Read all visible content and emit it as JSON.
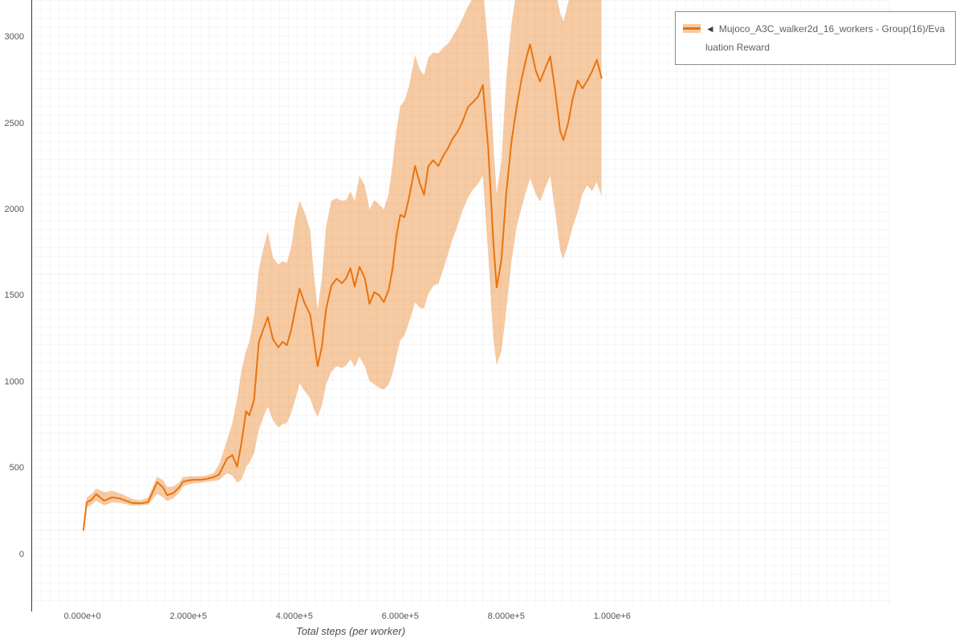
{
  "legend": {
    "collapse_icon": "◄",
    "label": "Mujoco_A3C_walker2d_16_workers - Group(16)/Evaluation Reward"
  },
  "chart_data": {
    "type": "line",
    "title": "",
    "xlabel": "Total steps (per worker)",
    "ylabel": "",
    "grid": true,
    "legend_position": "top-right-outside",
    "xlim": [
      -95000,
      1526000
    ],
    "ylim": [
      -300,
      3215
    ],
    "x_ticks": {
      "values": [
        0,
        200000,
        400000,
        600000,
        800000,
        1000000
      ],
      "labels": [
        "0.000e+0",
        "2.000e+5",
        "4.000e+5",
        "6.000e+5",
        "8.000e+5",
        "1.000e+6"
      ]
    },
    "y_ticks": {
      "values": [
        0,
        500,
        1000,
        1500,
        2000,
        2500,
        3000
      ],
      "labels": [
        "0",
        "500",
        "1000",
        "1500",
        "2000",
        "2500",
        "3000"
      ]
    },
    "series": [
      {
        "name": "Mujoco_A3C_walker2d_16_workers - Group(16)/Evaluation Reward",
        "line_color": "#e8740e",
        "band_fill": "rgba(232,116,14,0.38)",
        "x": [
          2000,
          8000,
          18000,
          26000,
          41000,
          56000,
          72000,
          94000,
          110000,
          124000,
          141000,
          152000,
          160000,
          172000,
          182000,
          190000,
          200000,
          212000,
          224000,
          236000,
          248000,
          258000,
          273000,
          283000,
          292000,
          300000,
          309000,
          315000,
          324000,
          333000,
          342000,
          350000,
          360000,
          370000,
          378000,
          386000,
          394000,
          402000,
          410000,
          420000,
          430000,
          437000,
          444000,
          452000,
          460000,
          470000,
          480000,
          490000,
          498000,
          506000,
          514000,
          523000,
          533000,
          542000,
          551000,
          560000,
          569000,
          578000,
          585000,
          593000,
          600000,
          608000,
          617000,
          628000,
          637000,
          645000,
          653000,
          662000,
          672000,
          681000,
          690000,
          698000,
          708000,
          717000,
          728000,
          738000,
          747000,
          756000,
          766000,
          776000,
          782000,
          791000,
          800000,
          810000,
          820000,
          829000,
          838000,
          845000,
          856000,
          864000,
          874000,
          883000,
          892000,
          902000,
          908000,
          917000,
          926000,
          935000,
          944000,
          953000,
          962000,
          971000,
          980000
        ],
        "mean": [
          140,
          300,
          318,
          348,
          310,
          330,
          322,
          297,
          295,
          302,
          418,
          388,
          342,
          355,
          385,
          420,
          428,
          432,
          432,
          438,
          447,
          462,
          555,
          575,
          508,
          640,
          830,
          805,
          895,
          1230,
          1310,
          1375,
          1245,
          1200,
          1232,
          1212,
          1300,
          1425,
          1540,
          1452,
          1390,
          1240,
          1090,
          1205,
          1420,
          1558,
          1598,
          1572,
          1600,
          1660,
          1552,
          1668,
          1602,
          1452,
          1520,
          1502,
          1462,
          1532,
          1648,
          1850,
          1968,
          1955,
          2075,
          2252,
          2150,
          2085,
          2250,
          2285,
          2252,
          2310,
          2355,
          2405,
          2450,
          2505,
          2595,
          2625,
          2655,
          2722,
          2360,
          1800,
          1548,
          1705,
          2090,
          2395,
          2600,
          2755,
          2880,
          2958,
          2805,
          2742,
          2820,
          2888,
          2700,
          2452,
          2402,
          2502,
          2648,
          2748,
          2702,
          2748,
          2800,
          2868,
          2762
        ],
        "lo": [
          125,
          270,
          290,
          310,
          283,
          300,
          298,
          282,
          283,
          287,
          350,
          330,
          308,
          325,
          355,
          393,
          405,
          412,
          415,
          420,
          424,
          430,
          470,
          455,
          415,
          430,
          505,
          530,
          585,
          720,
          800,
          855,
          775,
          735,
          755,
          760,
          820,
          900,
          990,
          945,
          905,
          840,
          795,
          865,
          985,
          1060,
          1090,
          1080,
          1095,
          1130,
          1085,
          1145,
          1090,
          1005,
          985,
          965,
          955,
          985,
          1045,
          1150,
          1240,
          1270,
          1350,
          1460,
          1430,
          1425,
          1510,
          1555,
          1570,
          1650,
          1740,
          1820,
          1905,
          1990,
          2070,
          2120,
          2150,
          2195,
          1740,
          1240,
          1095,
          1180,
          1410,
          1700,
          1905,
          2010,
          2110,
          2180,
          2090,
          2045,
          2130,
          2195,
          2000,
          1760,
          1712,
          1800,
          1905,
          1985,
          2090,
          2140,
          2105,
          2160,
          2075
        ],
        "hi": [
          155,
          330,
          352,
          380,
          360,
          368,
          352,
          320,
          312,
          330,
          448,
          430,
          390,
          392,
          415,
          447,
          452,
          452,
          452,
          458,
          472,
          520,
          660,
          760,
          900,
          1060,
          1180,
          1230,
          1380,
          1650,
          1780,
          1870,
          1720,
          1680,
          1700,
          1690,
          1780,
          1950,
          2050,
          1980,
          1880,
          1620,
          1420,
          1600,
          1900,
          2050,
          2065,
          2050,
          2055,
          2105,
          2050,
          2195,
          2140,
          2000,
          2055,
          2030,
          2000,
          2090,
          2250,
          2460,
          2600,
          2630,
          2720,
          2895,
          2810,
          2780,
          2880,
          2910,
          2905,
          2940,
          2960,
          3000,
          3050,
          3105,
          3180,
          3230,
          3270,
          3290,
          2950,
          2380,
          2090,
          2280,
          2760,
          3080,
          3280,
          3300,
          3300,
          3300,
          3300,
          3290,
          3300,
          3300,
          3280,
          3140,
          3090,
          3200,
          3290,
          3300,
          3300,
          3300,
          3300,
          3300,
          3255
        ]
      }
    ]
  }
}
